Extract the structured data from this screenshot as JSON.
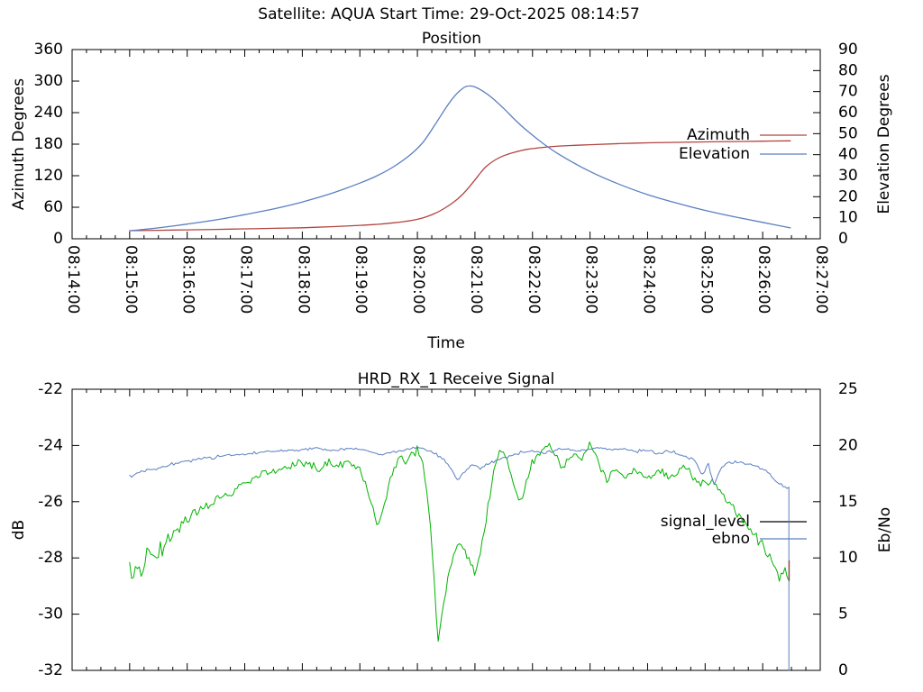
{
  "header": {
    "title": "Satellite: AQUA    Start Time: 29-Oct-2025 08:14:57"
  },
  "chart_data": [
    {
      "type": "line",
      "title": "Position",
      "x": {
        "title": "Time",
        "min": 0,
        "max": 13,
        "unit": "minutes after 08:14:00",
        "labels": [
          "08:14:00",
          "08:15:00",
          "08:16:00",
          "08:17:00",
          "08:18:00",
          "08:19:00",
          "08:20:00",
          "08:21:00",
          "08:22:00",
          "08:23:00",
          "08:24:00",
          "08:25:00",
          "08:26:00",
          "08:27:00"
        ],
        "minor_ticks_per_major": 3
      },
      "y_left": {
        "label": "Azimuth Degrees",
        "min": 0,
        "max": 360,
        "step": 60
      },
      "y_right": {
        "label": "Elevation Degrees",
        "min": 0,
        "max": 90,
        "step": 10
      },
      "grid": false,
      "legend": {
        "position": "inside-right",
        "items": [
          {
            "label": "Azimuth",
            "color": "#b2453f"
          },
          {
            "label": "Elevation",
            "color": "#5a7fc0"
          }
        ]
      },
      "series": [
        {
          "name": "Azimuth",
          "axis": "left",
          "color": "#b2453f",
          "points": [
            [
              1,
              15.5
            ],
            [
              1.5,
              16.2
            ],
            [
              2,
              17
            ],
            [
              2.5,
              17.8
            ],
            [
              3,
              18.8
            ],
            [
              3.5,
              19.8
            ],
            [
              4,
              21
            ],
            [
              4.5,
              23
            ],
            [
              5,
              25.5
            ],
            [
              5.3,
              27.5
            ],
            [
              5.6,
              30.5
            ],
            [
              5.9,
              35
            ],
            [
              6.1,
              40
            ],
            [
              6.3,
              48
            ],
            [
              6.5,
              60
            ],
            [
              6.7,
              76
            ],
            [
              6.85,
              92
            ],
            [
              7,
              112
            ],
            [
              7.1,
              126
            ],
            [
              7.2,
              138
            ],
            [
              7.35,
              150
            ],
            [
              7.5,
              158
            ],
            [
              7.7,
              165
            ],
            [
              7.9,
              170
            ],
            [
              8.2,
              174
            ],
            [
              8.5,
              176.5
            ],
            [
              9,
              179
            ],
            [
              9.5,
              181
            ],
            [
              10,
              182.5
            ],
            [
              10.5,
              183.5
            ],
            [
              11,
              184.3
            ],
            [
              11.5,
              185
            ],
            [
              12,
              185.7
            ],
            [
              12.48,
              186.3
            ]
          ]
        },
        {
          "name": "Elevation",
          "axis": "right",
          "color": "#5a7fc0",
          "points": [
            [
              1,
              3.8
            ],
            [
              1.5,
              5.2
            ],
            [
              2,
              7
            ],
            [
              2.5,
              9
            ],
            [
              3,
              11.5
            ],
            [
              3.5,
              14.2
            ],
            [
              4,
              17.5
            ],
            [
              4.5,
              21.5
            ],
            [
              5,
              26.5
            ],
            [
              5.3,
              30
            ],
            [
              5.6,
              34.5
            ],
            [
              5.9,
              40.5
            ],
            [
              6.1,
              46
            ],
            [
              6.3,
              54
            ],
            [
              6.5,
              62.5
            ],
            [
              6.65,
              68
            ],
            [
              6.8,
              71.8
            ],
            [
              6.9,
              72.7
            ],
            [
              7,
              72.2
            ],
            [
              7.15,
              70
            ],
            [
              7.3,
              67
            ],
            [
              7.5,
              62
            ],
            [
              7.7,
              56.5
            ],
            [
              7.9,
              51.5
            ],
            [
              8.2,
              45
            ],
            [
              8.5,
              39.5
            ],
            [
              9,
              32
            ],
            [
              9.5,
              26
            ],
            [
              10,
              21
            ],
            [
              10.5,
              17
            ],
            [
              11,
              13.5
            ],
            [
              11.5,
              10.5
            ],
            [
              12,
              7.8
            ],
            [
              12.48,
              5.2
            ]
          ]
        }
      ]
    },
    {
      "type": "line",
      "title": "HRD_RX_1 Receive Signal",
      "x": {
        "min": 0,
        "max": 13,
        "unit": "minutes after 08:14:00",
        "minor_ticks_per_major": 3
      },
      "y_left": {
        "label": "dB",
        "min": -32,
        "max": -22,
        "step": 2
      },
      "y_right": {
        "label": "Eb/No",
        "min": 0,
        "max": 25,
        "step": 5
      },
      "grid": false,
      "legend": {
        "position": "inside-right",
        "items": [
          {
            "label": "signal_level",
            "color": "#000000"
          },
          {
            "label": "ebno",
            "color": "#5a7fc0"
          }
        ]
      },
      "series": [
        {
          "name": "signal_level",
          "axis": "left",
          "color": "#00b400",
          "noise": {
            "seed": 9,
            "step_min": 0.0333,
            "amp_anchors": [
              [
                1,
                0.5
              ],
              [
                1.6,
                0.3
              ],
              [
                2.5,
                0.16
              ],
              [
                4,
                0.12
              ],
              [
                6,
                0.14
              ],
              [
                8,
                0.13
              ],
              [
                10,
                0.11
              ],
              [
                11.5,
                0.12
              ],
              [
                12.5,
                0.16
              ]
            ]
          },
          "points": [
            [
              1,
              -28.2
            ],
            [
              1.06,
              -29.1
            ],
            [
              1.12,
              -28.1
            ],
            [
              1.2,
              -28.8
            ],
            [
              1.3,
              -27.9
            ],
            [
              1.45,
              -27.9
            ],
            [
              1.6,
              -27.5
            ],
            [
              1.8,
              -27.1
            ],
            [
              2,
              -26.7
            ],
            [
              2.2,
              -26.4
            ],
            [
              2.4,
              -26.1
            ],
            [
              2.6,
              -25.8
            ],
            [
              2.8,
              -25.6
            ],
            [
              3,
              -25.4
            ],
            [
              3.2,
              -25.15
            ],
            [
              3.4,
              -25
            ],
            [
              3.6,
              -24.85
            ],
            [
              3.8,
              -24.7
            ],
            [
              4,
              -24.6
            ],
            [
              4.15,
              -24.7
            ],
            [
              4.3,
              -24.9
            ],
            [
              4.45,
              -24.6
            ],
            [
              4.6,
              -24.8
            ],
            [
              4.75,
              -24.55
            ],
            [
              4.9,
              -24.75
            ],
            [
              5,
              -24.9
            ],
            [
              5.1,
              -25.3
            ],
            [
              5.2,
              -26.2
            ],
            [
              5.3,
              -26.8
            ],
            [
              5.4,
              -26.4
            ],
            [
              5.5,
              -25.4
            ],
            [
              5.6,
              -24.7
            ],
            [
              5.7,
              -24.4
            ],
            [
              5.8,
              -24.6
            ],
            [
              5.9,
              -24.4
            ],
            [
              6,
              -24.15
            ],
            [
              6.08,
              -24.5
            ],
            [
              6.16,
              -25.5
            ],
            [
              6.24,
              -27.2
            ],
            [
              6.3,
              -29
            ],
            [
              6.36,
              -31.1
            ],
            [
              6.44,
              -29.8
            ],
            [
              6.52,
              -28.8
            ],
            [
              6.62,
              -28
            ],
            [
              6.72,
              -27.4
            ],
            [
              6.82,
              -27.7
            ],
            [
              6.92,
              -28.2
            ],
            [
              7,
              -28.6
            ],
            [
              7.08,
              -28
            ],
            [
              7.16,
              -27
            ],
            [
              7.26,
              -25.8
            ],
            [
              7.36,
              -24.6
            ],
            [
              7.44,
              -24.3
            ],
            [
              7.52,
              -24.4
            ],
            [
              7.6,
              -24.9
            ],
            [
              7.72,
              -25.6
            ],
            [
              7.8,
              -26.1
            ],
            [
              7.88,
              -25.4
            ],
            [
              7.96,
              -24.8
            ],
            [
              8.08,
              -24.3
            ],
            [
              8.2,
              -24.1
            ],
            [
              8.3,
              -23.95
            ],
            [
              8.42,
              -24.4
            ],
            [
              8.52,
              -24.9
            ],
            [
              8.62,
              -24.5
            ],
            [
              8.72,
              -24.3
            ],
            [
              8.82,
              -24.6
            ],
            [
              8.92,
              -24.2
            ],
            [
              9,
              -23.9
            ],
            [
              9.1,
              -24.3
            ],
            [
              9.2,
              -24.9
            ],
            [
              9.3,
              -25.2
            ],
            [
              9.45,
              -24.9
            ],
            [
              9.6,
              -25.1
            ],
            [
              9.75,
              -24.85
            ],
            [
              9.9,
              -25.05
            ],
            [
              10.05,
              -25.2
            ],
            [
              10.2,
              -24.85
            ],
            [
              10.35,
              -25.1
            ],
            [
              10.5,
              -25
            ],
            [
              10.65,
              -24.8
            ],
            [
              10.8,
              -25.15
            ],
            [
              10.95,
              -25.4
            ],
            [
              11.1,
              -25.2
            ],
            [
              11.25,
              -25.6
            ],
            [
              11.4,
              -26
            ],
            [
              11.6,
              -26.5
            ],
            [
              11.8,
              -27
            ],
            [
              12,
              -27.6
            ],
            [
              12.15,
              -28.1
            ],
            [
              12.3,
              -28.7
            ],
            [
              12.4,
              -28.3
            ],
            [
              12.48,
              -29.1
            ]
          ]
        },
        {
          "name": "ebno",
          "axis": "right",
          "color": "#5a7fc0",
          "noise": {
            "seed": 4,
            "step_min": 0.0333,
            "amp_anchors": [
              [
                1,
                0.16
              ],
              [
                3,
                0.1
              ],
              [
                6,
                0.1
              ],
              [
                9,
                0.1
              ],
              [
                11,
                0.12
              ],
              [
                12.5,
                0.15
              ]
            ]
          },
          "end_drop": {
            "to": 0
          },
          "points": [
            [
              1,
              17.3
            ],
            [
              1.2,
              17.6
            ],
            [
              1.5,
              18
            ],
            [
              1.8,
              18.4
            ],
            [
              2.1,
              18.7
            ],
            [
              2.4,
              18.9
            ],
            [
              2.7,
              19.1
            ],
            [
              3,
              19.2
            ],
            [
              3.3,
              19.4
            ],
            [
              3.6,
              19.5
            ],
            [
              3.9,
              19.6
            ],
            [
              4.2,
              19.75
            ],
            [
              4.45,
              19.5
            ],
            [
              4.7,
              19.65
            ],
            [
              5,
              19.7
            ],
            [
              5.2,
              19.4
            ],
            [
              5.4,
              19.15
            ],
            [
              5.6,
              19.4
            ],
            [
              5.8,
              19.65
            ],
            [
              6,
              19.8
            ],
            [
              6.15,
              19.6
            ],
            [
              6.3,
              19.3
            ],
            [
              6.45,
              18.8
            ],
            [
              6.6,
              17.9
            ],
            [
              6.7,
              16.9
            ],
            [
              6.8,
              17.5
            ],
            [
              6.95,
              18.3
            ],
            [
              7.1,
              18
            ],
            [
              7.25,
              18.4
            ],
            [
              7.4,
              18.7
            ],
            [
              7.6,
              19
            ],
            [
              7.8,
              19.4
            ],
            [
              8,
              19.5
            ],
            [
              8.2,
              19.3
            ],
            [
              8.4,
              19.6
            ],
            [
              8.6,
              19.75
            ],
            [
              8.8,
              19.5
            ],
            [
              9,
              19.7
            ],
            [
              9.2,
              19.85
            ],
            [
              9.4,
              19.55
            ],
            [
              9.6,
              19.7
            ],
            [
              9.8,
              19.45
            ],
            [
              10,
              19.6
            ],
            [
              10.2,
              19.3
            ],
            [
              10.4,
              19.5
            ],
            [
              10.6,
              19.1
            ],
            [
              10.8,
              18.8
            ],
            [
              10.95,
              17.3
            ],
            [
              11.05,
              18.5
            ],
            [
              11.15,
              16.5
            ],
            [
              11.25,
              17.6
            ],
            [
              11.35,
              18.4
            ],
            [
              11.5,
              18.5
            ],
            [
              11.65,
              18.4
            ],
            [
              11.8,
              18.3
            ],
            [
              11.95,
              18.1
            ],
            [
              12.1,
              17.5
            ],
            [
              12.2,
              17
            ],
            [
              12.3,
              16.6
            ],
            [
              12.4,
              16.3
            ],
            [
              12.48,
              16.2
            ]
          ]
        },
        {
          "name": "signal_level_end_marker",
          "axis": "left",
          "color": "#a04040",
          "points": [
            [
              12.46,
              -28.1
            ],
            [
              12.46,
              -28.8
            ]
          ]
        }
      ]
    }
  ]
}
